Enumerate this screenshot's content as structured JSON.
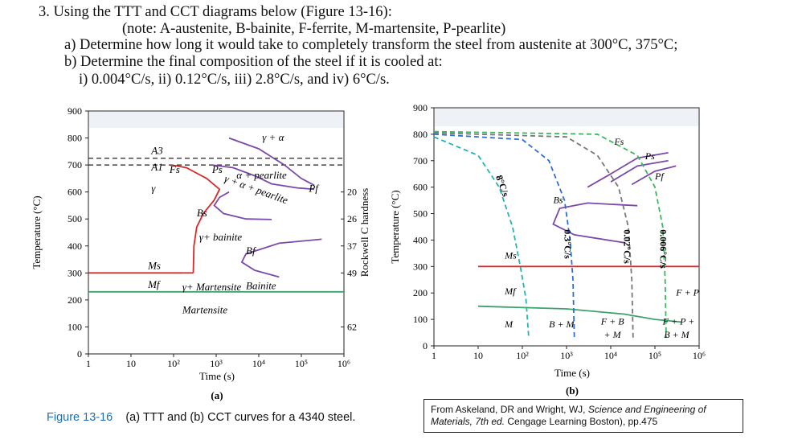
{
  "question": {
    "line1": "3.   Using the TTT and CCT diagrams below (Figure 13-16):",
    "line2": "(note: A-austenite, B-bainite, F-ferrite, M-martensite, P-pearlite)",
    "line3": "a) Determine how long it would take to completely transform the steel from austenite at 300°C, 375°C;",
    "line4": "b) Determine the final composition of the steel if it is cooled at:",
    "line5": "i) 0.004°C/s,  ii) 0.12°C/s, iii) 2.8°C/s, and iv) 6°C/s."
  },
  "caption": {
    "fig": "Figure 13-16",
    "text": "(a) TTT and (b) CCT curves for a 4340 steel."
  },
  "source": {
    "prefix": "From Askeland, DR and Wright, WJ, ",
    "title": "Science and Engineering of Materials, 7th ed.",
    "suffix": " Cengage Learning Boston), pp.475"
  },
  "chart_data": [
    {
      "type": "line",
      "panel": "(a)",
      "xlabel": "Time (s)",
      "ylabel": "Temperature (°C)",
      "y2label": "Rockwell C hardness",
      "x_scale": "log",
      "xlim": [
        1,
        1000000
      ],
      "ylim": [
        0,
        900
      ],
      "x_ticks": [
        "1",
        "10",
        "10²",
        "10³",
        "10⁴",
        "10⁵",
        "10⁶"
      ],
      "y_ticks": [
        "0",
        "100",
        "200",
        "300",
        "400",
        "500",
        "600",
        "700",
        "800",
        "900"
      ],
      "hardness_ticks": [
        {
          "label": "20",
          "temp": 600
        },
        {
          "label": "26",
          "temp": 500
        },
        {
          "label": "37",
          "temp": 400
        },
        {
          "label": "49",
          "temp": 300
        },
        {
          "label": "62",
          "temp": 100
        }
      ],
      "lines": [
        {
          "name": "A3",
          "temp": 725
        },
        {
          "name": "A1",
          "temp": 700
        },
        {
          "name": "Ms",
          "temp": 300
        },
        {
          "name": "Mf",
          "temp": 230
        }
      ],
      "series": [
        {
          "name": "Fs",
          "points": [
            [
              90,
              700
            ],
            [
              200,
              690
            ],
            [
              600,
              650
            ],
            [
              1200,
              610
            ],
            [
              900,
              570
            ],
            [
              500,
              520
            ],
            [
              350,
              470
            ],
            [
              300,
              400
            ],
            [
              290,
              300
            ]
          ]
        },
        {
          "name": "Ps",
          "points": [
            [
              800,
              700
            ],
            [
              2500,
              690
            ],
            [
              8000,
              660
            ],
            [
              20000,
              630
            ],
            [
              80000,
              615
            ],
            [
              200000,
              610
            ]
          ]
        },
        {
          "name": "Bs",
          "points": [
            [
              2000,
              600
            ],
            [
              1200,
              580
            ],
            [
              900,
              550
            ],
            [
              1500,
              520
            ],
            [
              5000,
              500
            ],
            [
              20000,
              498
            ]
          ]
        },
        {
          "name": "Pf",
          "points": [
            [
              2000,
              800
            ],
            [
              10000,
              760
            ],
            [
              40000,
              700
            ],
            [
              100000,
              650
            ],
            [
              200000,
              625
            ]
          ]
        },
        {
          "name": "Bf",
          "points": [
            [
              300000,
              425
            ],
            [
              30000,
              410
            ],
            [
              5000,
              370
            ],
            [
              4000,
              340
            ],
            [
              8000,
              310
            ],
            [
              30000,
              285
            ]
          ]
        }
      ],
      "labels": [
        "A3",
        "A1",
        "γ",
        "Fs",
        "Ps",
        "Bs",
        "Pf",
        "Bf",
        "Ms",
        "Mf",
        "γ + α",
        "α + pearlite",
        "γ + α + pearlite",
        "γ+ bainite",
        "γ+ Martensite",
        "Martensite",
        "Bainite"
      ]
    },
    {
      "type": "line",
      "panel": "(b)",
      "xlabel": "Time (s)",
      "ylabel": "Temperature (°C)",
      "x_scale": "log",
      "xlim": [
        1,
        1000000
      ],
      "ylim": [
        0,
        900
      ],
      "x_ticks": [
        "1",
        "10",
        "10²",
        "10³",
        "10⁴",
        "10⁵",
        "10⁶"
      ],
      "y_ticks": [
        "0",
        "100",
        "200",
        "300",
        "400",
        "500",
        "600",
        "700",
        "800",
        "900"
      ],
      "cooling_rates": [
        "8°C/s",
        "0.3°C/s",
        "0.02°C/s",
        "0.006°C/s"
      ],
      "labels": [
        "Fs",
        "Ps",
        "Pf",
        "Bs",
        "Ms",
        "Mf",
        "M",
        "B + M",
        "F + B + M",
        "F + P",
        "F + P + B + M"
      ]
    }
  ]
}
